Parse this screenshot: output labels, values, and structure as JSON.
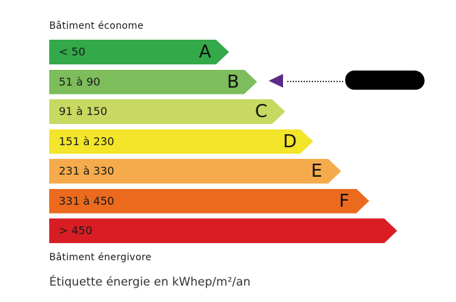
{
  "top_label": "Bâtiment économe",
  "bottom_label": "Bâtiment énergivore",
  "footer": "Étiquette énergie en kWhep/m²/an",
  "classes": [
    {
      "letter": "A",
      "range": "< 50",
      "color": "#33a94a"
    },
    {
      "letter": "B",
      "range": "51 à 90",
      "color": "#7dbd5c"
    },
    {
      "letter": "C",
      "range": "91 à 150",
      "color": "#c8d962"
    },
    {
      "letter": "D",
      "range": "151 à 230",
      "color": "#f2e52a"
    },
    {
      "letter": "E",
      "range": "231 à 330",
      "color": "#f5ab4c"
    },
    {
      "letter": "F",
      "range": "331 à 450",
      "color": "#eb6a1e"
    },
    {
      "letter": "",
      "range": "> 450",
      "color": "#d81e24"
    }
  ],
  "indicator": {
    "class": "B",
    "color": "#5b2a86",
    "value_redacted": true
  }
}
